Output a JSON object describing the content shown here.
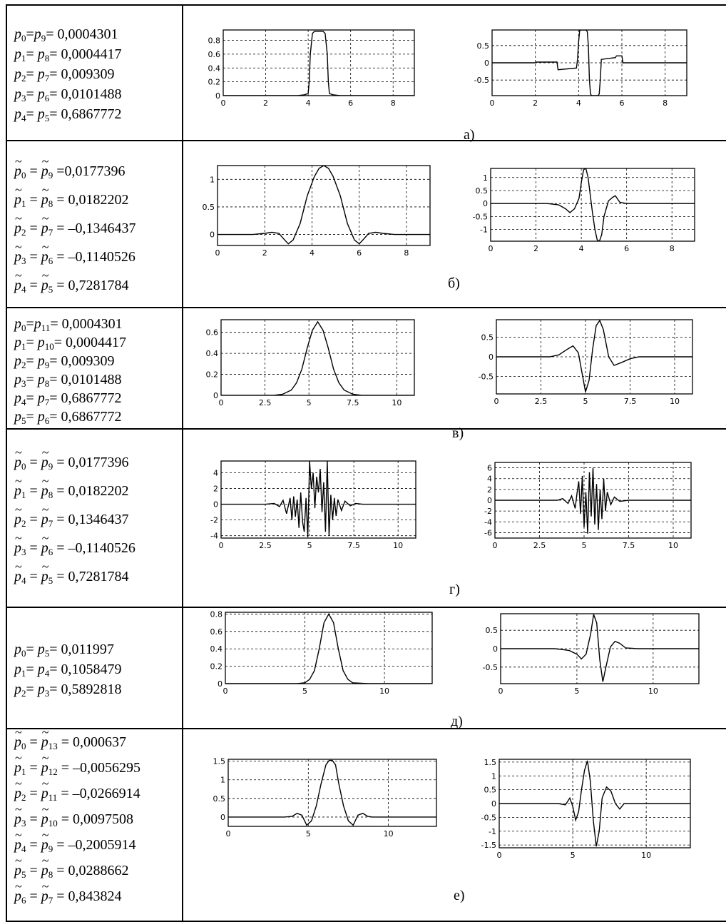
{
  "rows": [
    {
      "label": "а)",
      "params": [
        {
          "tilde": false,
          "text": "p0=p9= 0,0004301"
        },
        {
          "tilde": false,
          "text": "p1= p8= 0,0004417"
        },
        {
          "tilde": false,
          "text": "p2= p7= 0,009309"
        },
        {
          "tilde": false,
          "text": "p3= p6= 0,0101488"
        },
        {
          "tilde": false,
          "text": "p4= p5= 0,6867772"
        }
      ],
      "charts": [
        {
          "type": "line",
          "xlim": [
            0,
            9
          ],
          "ylim": [
            0,
            0.95
          ],
          "xticks": [
            0,
            2,
            4,
            6,
            8
          ],
          "yticks": [
            0,
            0.2,
            0.4,
            0.6,
            0.8
          ],
          "x": [
            0,
            3.5,
            3.8,
            4.0,
            4.05,
            4.1,
            4.2,
            4.3,
            4.7,
            4.8,
            4.9,
            4.95,
            5.0,
            5.2,
            5.5,
            9
          ],
          "y": [
            0,
            0,
            0.01,
            0.03,
            0.2,
            0.6,
            0.9,
            0.93,
            0.93,
            0.9,
            0.6,
            0.2,
            0.03,
            0.01,
            0,
            0
          ]
        },
        {
          "type": "line",
          "xlim": [
            0,
            9
          ],
          "ylim": [
            -0.95,
            0.95
          ],
          "xticks": [
            0,
            2,
            4,
            6,
            8
          ],
          "yticks": [
            -0.5,
            0,
            0.5
          ],
          "x": [
            0,
            2,
            2.05,
            3,
            3.05,
            3.9,
            3.95,
            4.0,
            4.05,
            4.1,
            4.35,
            4.4,
            4.45,
            4.5,
            4.55,
            4.6,
            4.9,
            4.95,
            5.0,
            5.05,
            5.7,
            5.75,
            6,
            6.05,
            9
          ],
          "y": [
            0,
            0,
            0.02,
            0.02,
            -0.2,
            -0.15,
            0.1,
            0.6,
            0.93,
            0.95,
            0.95,
            0.9,
            0.5,
            -0.5,
            -0.9,
            -0.95,
            -0.95,
            -0.9,
            -0.5,
            0.1,
            0.15,
            0.2,
            0.2,
            0,
            0
          ]
        }
      ]
    },
    {
      "label": "б)",
      "params": [
        {
          "tilde": true,
          "text": "p0 = p9 =0,0177396"
        },
        {
          "tilde": true,
          "text": "p1 = p8 = 0,0182202"
        },
        {
          "tilde": true,
          "text": "p2 = p7 = –0,1346437"
        },
        {
          "tilde": true,
          "text": "p3 = p6 = –0,1140526"
        },
        {
          "tilde": true,
          "text": "p4 = p5 = 0,7281784"
        }
      ],
      "charts": [
        {
          "type": "line",
          "xlim": [
            0,
            9
          ],
          "ylim": [
            -0.2,
            1.25
          ],
          "xticks": [
            0,
            2,
            4,
            6,
            8
          ],
          "yticks": [
            0,
            0.5,
            1
          ],
          "x": [
            0,
            1.5,
            2,
            2.3,
            2.6,
            2.8,
            3,
            3.2,
            3.5,
            3.8,
            4.1,
            4.3,
            4.5,
            4.7,
            4.9,
            5.2,
            5.5,
            5.8,
            6,
            6.2,
            6.4,
            6.7,
            7,
            7.5,
            9
          ],
          "y": [
            0,
            0,
            0.02,
            0.04,
            0.02,
            -0.08,
            -0.17,
            -0.1,
            0.2,
            0.7,
            1.05,
            1.2,
            1.25,
            1.2,
            1.05,
            0.7,
            0.2,
            -0.1,
            -0.17,
            -0.08,
            0.02,
            0.04,
            0.02,
            0,
            0
          ]
        },
        {
          "type": "line",
          "xlim": [
            0,
            9
          ],
          "ylim": [
            -1.45,
            1.35
          ],
          "xticks": [
            0,
            2,
            4,
            6,
            8
          ],
          "yticks": [
            -1,
            -0.5,
            0,
            0.5,
            1
          ],
          "x": [
            0,
            2.5,
            3,
            3.3,
            3.5,
            3.7,
            3.9,
            4.0,
            4.1,
            4.2,
            4.3,
            4.4,
            4.5,
            4.6,
            4.7,
            4.8,
            4.9,
            5.0,
            5.2,
            5.4,
            5.5,
            5.7,
            6,
            9
          ],
          "y": [
            0,
            0,
            -0.05,
            -0.2,
            -0.35,
            -0.2,
            0.2,
            0.8,
            1.3,
            1.35,
            1.0,
            0.3,
            -0.4,
            -1.0,
            -1.4,
            -1.45,
            -1.2,
            -0.5,
            0.1,
            0.25,
            0.3,
            0.05,
            0,
            0
          ]
        }
      ]
    },
    {
      "label": "в)",
      "params": [
        {
          "tilde": false,
          "text": "p0=p11= 0,0004301"
        },
        {
          "tilde": false,
          "text": "p1= p10= 0,0004417"
        },
        {
          "tilde": false,
          "text": "p2= p9= 0,009309"
        },
        {
          "tilde": false,
          "text": "p3= p8= 0,0101488"
        },
        {
          "tilde": false,
          "text": "p4= p7= 0,6867772"
        },
        {
          "tilde": false,
          "text": "p5= p6= 0,6867772"
        }
      ],
      "charts": [
        {
          "type": "line",
          "xlim": [
            0,
            11
          ],
          "ylim": [
            0,
            0.72
          ],
          "xticks": [
            0,
            2.5,
            5,
            7.5,
            10
          ],
          "yticks": [
            0,
            0.2,
            0.4,
            0.6
          ],
          "x": [
            0,
            3,
            3.5,
            4,
            4.3,
            4.6,
            4.9,
            5.2,
            5.5,
            5.8,
            6.1,
            6.4,
            6.7,
            7,
            7.5,
            8,
            11
          ],
          "y": [
            0,
            0,
            0.01,
            0.05,
            0.12,
            0.25,
            0.45,
            0.62,
            0.7,
            0.62,
            0.45,
            0.25,
            0.12,
            0.05,
            0.01,
            0,
            0
          ]
        },
        {
          "type": "line",
          "xlim": [
            0,
            11
          ],
          "ylim": [
            -0.95,
            0.95
          ],
          "xticks": [
            0,
            2.5,
            5,
            7.5,
            10
          ],
          "yticks": [
            -0.5,
            0,
            0.5
          ],
          "x": [
            0,
            3,
            3.5,
            4,
            4.3,
            4.6,
            4.8,
            5,
            5.2,
            5.4,
            5.6,
            5.8,
            6,
            6.3,
            6.6,
            7,
            7.5,
            8,
            11
          ],
          "y": [
            0,
            0,
            0.05,
            0.2,
            0.28,
            0.1,
            -0.4,
            -0.9,
            -0.6,
            0.2,
            0.8,
            0.93,
            0.7,
            0.0,
            -0.22,
            -0.15,
            -0.05,
            0,
            0
          ]
        }
      ]
    },
    {
      "label": "г)",
      "params": [
        {
          "tilde": true,
          "text": "p0 = p9 = 0,0177396"
        },
        {
          "tilde": true,
          "text": "p1 = p8 = 0,0182202"
        },
        {
          "tilde": true,
          "text": "p2 = p7 = 0,1346437"
        },
        {
          "tilde": true,
          "text": "p3 = p6 = –0,1140526"
        },
        {
          "tilde": true,
          "text": "p4 = p5 = 0,7281784"
        }
      ],
      "charts": [
        {
          "type": "line",
          "xlim": [
            0,
            11
          ],
          "ylim": [
            -4.3,
            5.5
          ],
          "xticks": [
            0,
            2.5,
            5,
            7.5,
            10
          ],
          "yticks": [
            -4,
            -2,
            0,
            2,
            4
          ],
          "x": [
            0,
            2.5,
            3,
            3.3,
            3.5,
            3.7,
            3.9,
            4.0,
            4.1,
            4.2,
            4.3,
            4.4,
            4.5,
            4.6,
            4.7,
            4.8,
            4.9,
            5.0,
            5.1,
            5.2,
            5.3,
            5.4,
            5.5,
            5.6,
            5.7,
            5.8,
            5.9,
            6.0,
            6.1,
            6.2,
            6.3,
            6.4,
            6.5,
            6.6,
            6.8,
            7.0,
            7.3,
            7.6,
            8,
            11
          ],
          "y": [
            0,
            0,
            0.1,
            -0.3,
            0.5,
            -1.2,
            0.8,
            -2.0,
            1.0,
            -1.6,
            0.6,
            -3.0,
            1.5,
            -2.2,
            -3.5,
            0.8,
            -4.2,
            5.5,
            2.0,
            4.0,
            -0.5,
            3.5,
            1.5,
            4.5,
            -1.0,
            2.8,
            -3.5,
            5.5,
            -4.0,
            1.2,
            -2.0,
            0.8,
            -1.5,
            0.6,
            -0.8,
            0.4,
            -0.2,
            0.1,
            0,
            0
          ]
        },
        {
          "type": "line",
          "xlim": [
            0,
            11
          ],
          "ylim": [
            -7,
            7
          ],
          "xticks": [
            0,
            2.5,
            5,
            7.5,
            10
          ],
          "yticks": [
            -6,
            -4,
            -2,
            0,
            2,
            4,
            6
          ],
          "x": [
            0,
            3.5,
            3.8,
            4.1,
            4.3,
            4.5,
            4.6,
            4.7,
            4.8,
            4.9,
            5.0,
            5.1,
            5.2,
            5.3,
            5.4,
            5.5,
            5.6,
            5.7,
            5.8,
            5.9,
            6.0,
            6.1,
            6.2,
            6.3,
            6.5,
            6.7,
            7,
            7.5,
            11
          ],
          "y": [
            0,
            0,
            0.3,
            -0.6,
            0.8,
            -1.5,
            1.2,
            3.5,
            -2.5,
            4.5,
            -5.0,
            1.5,
            -6.2,
            5.2,
            -3.0,
            6.0,
            -4.5,
            3.0,
            -5.5,
            2.0,
            -3.5,
            4.0,
            -2.0,
            1.5,
            -0.8,
            0.6,
            -0.2,
            0,
            0
          ]
        }
      ]
    },
    {
      "label": "д)",
      "params": [
        {
          "tilde": false,
          "text": "p0= p5= 0,011997"
        },
        {
          "tilde": false,
          "text": "p1= p4= 0,1058479"
        },
        {
          "tilde": false,
          "text": "p2= p3= 0,5892818"
        }
      ],
      "charts": [
        {
          "type": "line",
          "xlim": [
            0,
            13
          ],
          "ylim": [
            0,
            0.82
          ],
          "xticks": [
            0,
            5,
            10
          ],
          "yticks": [
            0,
            0.2,
            0.4,
            0.6,
            0.8
          ],
          "x": [
            0,
            4.5,
            5,
            5.3,
            5.6,
            5.9,
            6.2,
            6.5,
            6.8,
            7.1,
            7.4,
            7.7,
            8,
            9,
            13
          ],
          "y": [
            0,
            0,
            0.01,
            0.05,
            0.15,
            0.4,
            0.7,
            0.8,
            0.7,
            0.4,
            0.15,
            0.05,
            0.01,
            0,
            0
          ]
        },
        {
          "type": "line",
          "xlim": [
            0,
            13
          ],
          "ylim": [
            -0.95,
            0.95
          ],
          "xticks": [
            0,
            5,
            10
          ],
          "yticks": [
            -0.5,
            0,
            0.5
          ],
          "x": [
            0,
            3.5,
            4,
            4.5,
            5,
            5.3,
            5.6,
            5.9,
            6.1,
            6.3,
            6.5,
            6.7,
            6.9,
            7.2,
            7.5,
            7.8,
            8.2,
            9,
            13
          ],
          "y": [
            0,
            0,
            -0.02,
            -0.05,
            -0.15,
            -0.28,
            -0.15,
            0.4,
            0.93,
            0.7,
            -0.3,
            -0.9,
            -0.5,
            0.05,
            0.2,
            0.15,
            0.02,
            0,
            0
          ]
        }
      ]
    },
    {
      "label": "е)",
      "params": [
        {
          "tilde": true,
          "text": "p0 = p13 = 0,000637"
        },
        {
          "tilde": true,
          "text": "p1 = p12 = –0,0056295"
        },
        {
          "tilde": true,
          "text": "p2 = p11 = –0,0266914"
        },
        {
          "tilde": true,
          "text": "p3 = p10 = 0,0097508"
        },
        {
          "tilde": true,
          "text": "p4 = p9 = –0,2005914"
        },
        {
          "tilde": true,
          "text": "p5 = p8 = 0,0288662"
        },
        {
          "tilde": true,
          "text": "p6 = p7 = 0,843824"
        }
      ],
      "charts": [
        {
          "type": "line",
          "xlim": [
            0,
            13
          ],
          "ylim": [
            -0.25,
            1.55
          ],
          "xticks": [
            0,
            5,
            10
          ],
          "yticks": [
            0,
            0.5,
            1,
            1.5
          ],
          "x": [
            0,
            3.5,
            4,
            4.3,
            4.6,
            4.9,
            5.2,
            5.5,
            5.8,
            6.1,
            6.3,
            6.5,
            6.7,
            6.9,
            7.2,
            7.5,
            7.8,
            8.1,
            8.4,
            8.7,
            9,
            9.5,
            13
          ],
          "y": [
            0,
            0,
            0.02,
            0.1,
            0.05,
            -0.22,
            -0.1,
            0.3,
            0.9,
            1.4,
            1.52,
            1.52,
            1.4,
            0.9,
            0.3,
            -0.1,
            -0.22,
            0.05,
            0.1,
            0.02,
            0,
            0,
            0
          ]
        },
        {
          "type": "line",
          "xlim": [
            0,
            13
          ],
          "ylim": [
            -1.6,
            1.6
          ],
          "xticks": [
            0,
            5,
            10
          ],
          "yticks": [
            -1.5,
            -1,
            -0.5,
            0,
            0.5,
            1,
            1.5
          ],
          "x": [
            0,
            4,
            4.5,
            4.8,
            5.0,
            5.2,
            5.4,
            5.6,
            5.8,
            6.0,
            6.2,
            6.4,
            6.6,
            6.8,
            7.0,
            7.3,
            7.6,
            7.9,
            8.2,
            8.5,
            13
          ],
          "y": [
            0,
            0,
            -0.05,
            0.2,
            -0.1,
            -0.6,
            -0.3,
            0.5,
            1.2,
            1.55,
            0.8,
            -0.6,
            -1.55,
            -1.0,
            0.2,
            0.6,
            0.45,
            0.0,
            -0.2,
            0.0,
            0
          ]
        }
      ]
    }
  ]
}
